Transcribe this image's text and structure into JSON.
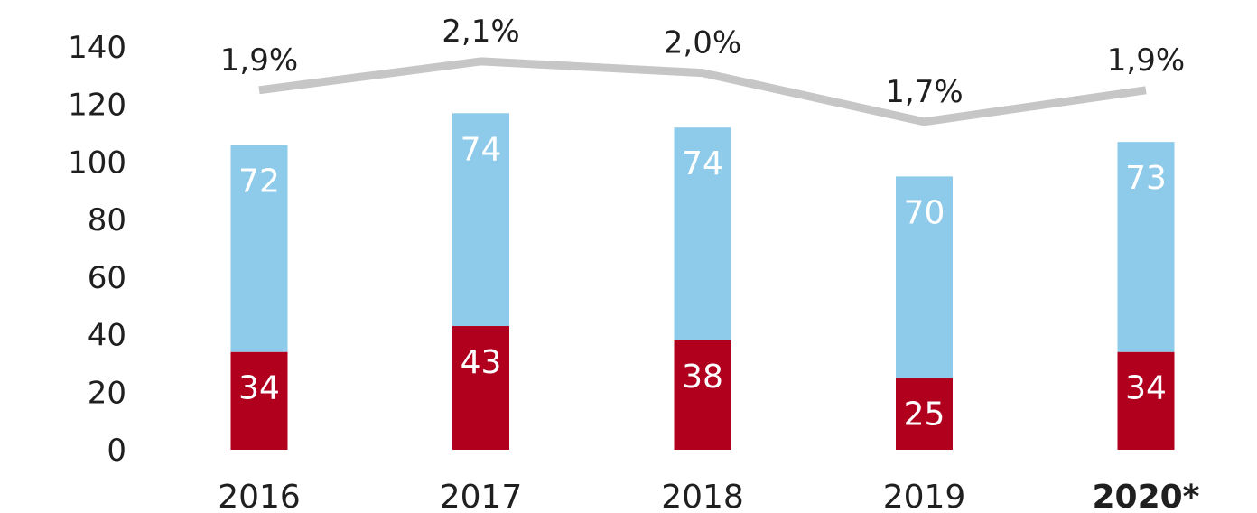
{
  "chart_data": {
    "type": "bar",
    "stacked": true,
    "categories": [
      "2016",
      "2017",
      "2018",
      "2019",
      "2020*"
    ],
    "highlight_category": "2020*",
    "series": [
      {
        "values": [
          34,
          43,
          38,
          25,
          34
        ],
        "color": "#b0001e"
      },
      {
        "values": [
          72,
          74,
          74,
          70,
          73
        ],
        "color": "#8ecbea"
      }
    ],
    "line": {
      "values": [
        "1,9%",
        "2,1%",
        "2,0%",
        "1,7%",
        "1,9%"
      ],
      "levels": [
        125,
        135,
        131,
        114,
        125
      ],
      "color": "#c6c6c6"
    },
    "y_ticks": [
      0,
      20,
      40,
      60,
      80,
      100,
      120,
      140
    ],
    "ylim": [
      0,
      140
    ],
    "grid": false,
    "legend": "none"
  }
}
